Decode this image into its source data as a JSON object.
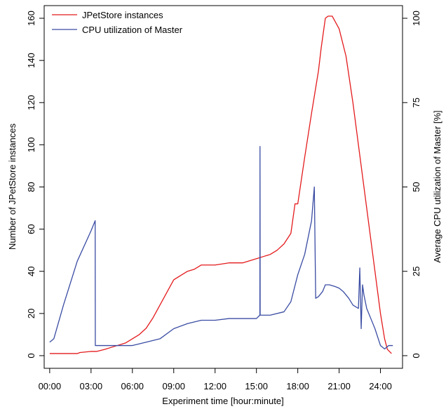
{
  "chart_data": {
    "type": "line",
    "xlabel": "Experiment time [hour:minute]",
    "ylabel_left": "Number of JPetStore instances",
    "ylabel_right": "Average CPU utilization of Master [%]",
    "x_unit": "hours",
    "xlim": [
      -0.4,
      25.6
    ],
    "x_ticks": [
      {
        "value": 0,
        "label": "00:00"
      },
      {
        "value": 3,
        "label": "03:00"
      },
      {
        "value": 6,
        "label": "06:00"
      },
      {
        "value": 9,
        "label": "09:00"
      },
      {
        "value": 12,
        "label": "12:00"
      },
      {
        "value": 15,
        "label": "15:00"
      },
      {
        "value": 18,
        "label": "18:00"
      },
      {
        "value": 21,
        "label": "21:00"
      },
      {
        "value": 24,
        "label": "24:00"
      }
    ],
    "ylim_left": [
      -6,
      166
    ],
    "y_ticks_left": [
      0,
      20,
      40,
      60,
      80,
      100,
      120,
      140,
      160
    ],
    "ylim_right": [
      -3.75,
      103.75
    ],
    "y_ticks_right": [
      0,
      25,
      50,
      75,
      100
    ],
    "grid": false,
    "legend_position": "top-left",
    "series": [
      {
        "name": "JPetStore instances",
        "axis": "left",
        "color": "#e41a1c",
        "x": [
          0,
          1,
          2,
          2.2,
          3.0,
          3.4,
          4.0,
          4.5,
          5.0,
          5.5,
          6.0,
          6.5,
          7.0,
          7.5,
          8.0,
          8.5,
          9.0,
          9.5,
          10.0,
          10.5,
          11.0,
          11.5,
          12.0,
          13.0,
          14.0,
          14.5,
          15.0,
          15.5,
          16.0,
          16.5,
          17.0,
          17.5,
          17.8,
          18.0,
          18.5,
          19.0,
          19.5,
          19.7,
          20.0,
          20.2,
          20.5,
          21.0,
          21.5,
          22.0,
          22.5,
          23.0,
          23.5,
          24.0,
          24.3,
          24.5,
          24.8
        ],
        "values": [
          1,
          1,
          1,
          1.5,
          2,
          2,
          3,
          4,
          5,
          6,
          8,
          10,
          13,
          18,
          24,
          30,
          36,
          38,
          40,
          41,
          43,
          43,
          43,
          44,
          44,
          45,
          46,
          47,
          48,
          50,
          53,
          58,
          72,
          72,
          94,
          115,
          135,
          146,
          160,
          161,
          161,
          155,
          142,
          120,
          95,
          70,
          45,
          20,
          8,
          3,
          1
        ]
      },
      {
        "name": "CPU utilization of Master",
        "axis": "right",
        "color": "#3a4ca3",
        "x": [
          0,
          0.3,
          1.0,
          2.0,
          3.0,
          3.3,
          3.31,
          4.0,
          5.0,
          6.0,
          7.0,
          8.0,
          9.0,
          10.0,
          11.0,
          12.0,
          13.0,
          14.0,
          15.0,
          15.25,
          15.26,
          15.27,
          15.5,
          16.0,
          17.0,
          17.5,
          18.0,
          18.5,
          19.0,
          19.2,
          19.3,
          19.5,
          19.8,
          20.0,
          20.3,
          20.7,
          21.0,
          21.3,
          21.7,
          22.0,
          22.4,
          22.5,
          22.6,
          22.7,
          22.8,
          23.0,
          23.3,
          23.6,
          24.0,
          24.3,
          24.6,
          24.9
        ],
        "values": [
          4,
          5,
          15,
          28,
          37,
          40,
          3,
          3,
          3,
          3,
          4,
          5,
          8,
          9.5,
          10.5,
          10.5,
          11,
          11,
          11,
          12,
          62,
          12,
          12,
          12,
          13,
          16,
          24,
          30,
          40,
          50,
          17,
          17.5,
          19,
          21,
          21,
          20.5,
          20,
          19,
          17,
          15,
          14,
          26,
          8,
          21,
          18,
          14,
          11,
          8,
          3,
          2,
          3,
          3
        ]
      }
    ]
  }
}
